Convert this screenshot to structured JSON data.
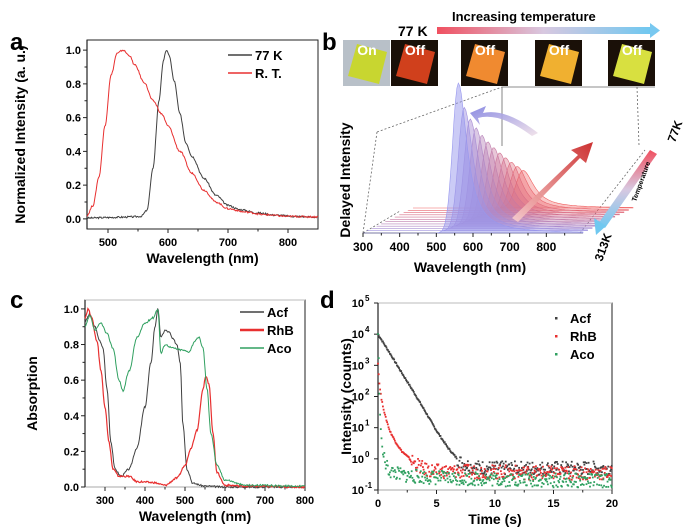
{
  "panels": {
    "a": {
      "label": "a"
    },
    "b": {
      "label": "b",
      "top_label_77k": "77 K",
      "arrow_label": "Increasing temperature",
      "photos": [
        {
          "text": "On",
          "color": "#c8d630"
        },
        {
          "text": "Off",
          "color": "#d0401c"
        },
        {
          "text": "Off",
          "color": "#f08a30"
        },
        {
          "text": "Off",
          "color": "#f0b030"
        },
        {
          "text": "Off",
          "color": "#d8e040"
        }
      ],
      "temp_high": "77K",
      "temp_low": "313K",
      "temp_axis_label": "Temperature"
    },
    "c": {
      "label": "c"
    },
    "d": {
      "label": "d"
    }
  },
  "chart_data": [
    {
      "id": "a",
      "type": "line",
      "title": "",
      "xlabel": "Wavelength (nm)",
      "ylabel": "Normalized Intensity (a. u.)",
      "xlim": [
        465,
        850
      ],
      "ylim": [
        -0.06,
        1.06
      ],
      "xticks": [
        500,
        600,
        700,
        800
      ],
      "yticks": [
        0.0,
        0.2,
        0.4,
        0.6,
        0.8,
        1.0
      ],
      "ytick_labels": [
        "0.0",
        "0.2",
        "0.4",
        "0.6",
        "0.8",
        "1.0"
      ],
      "legend_position": "top-right",
      "series": [
        {
          "name": "77 K",
          "color": "#404040",
          "x": [
            465,
            500,
            520,
            540,
            555,
            565,
            575,
            585,
            592,
            597,
            602,
            610,
            620,
            630,
            640,
            660,
            680,
            700,
            720,
            750,
            780,
            810,
            850
          ],
          "y": [
            0.005,
            0.008,
            0.01,
            0.012,
            0.015,
            0.05,
            0.3,
            0.7,
            0.93,
            1.0,
            0.97,
            0.82,
            0.62,
            0.45,
            0.37,
            0.24,
            0.14,
            0.08,
            0.055,
            0.035,
            0.022,
            0.015,
            0.01
          ]
        },
        {
          "name": "R. T.",
          "color": "#e83030",
          "x": [
            465,
            475,
            485,
            495,
            505,
            515,
            525,
            535,
            545,
            560,
            575,
            590,
            600,
            620,
            640,
            660,
            680,
            700,
            730,
            760,
            800,
            850
          ],
          "y": [
            0.02,
            0.08,
            0.25,
            0.55,
            0.85,
            0.98,
            1.0,
            0.97,
            0.91,
            0.81,
            0.7,
            0.62,
            0.55,
            0.4,
            0.27,
            0.17,
            0.1,
            0.06,
            0.04,
            0.025,
            0.015,
            0.012
          ]
        }
      ]
    },
    {
      "id": "b",
      "type": "area",
      "title": "",
      "xlabel": "Wavelength (nm)",
      "ylabel": "Delayed Intensity",
      "xlim": [
        300,
        900
      ],
      "xticks": [
        300,
        400,
        500,
        600,
        700,
        800
      ],
      "z_label": "Temperature",
      "z_range": [
        "313K",
        "77K"
      ],
      "note": "3D waterfall of delayed emission spectra; high-temperature (313K, blue) peak near 560 nm is intense, low-temperature (77K, red) peak near 600 nm is weak",
      "series": [
        {
          "name": "313K",
          "color": "#8888ee",
          "peak_nm": 560,
          "relative_height": 1.0
        },
        {
          "name": "77K",
          "color": "#f06060",
          "peak_nm": 600,
          "relative_height": 0.25
        }
      ]
    },
    {
      "id": "c",
      "type": "line",
      "title": "",
      "xlabel": "Wavelength (nm)",
      "ylabel": "Absorption",
      "xlim": [
        250,
        800
      ],
      "ylim": [
        0,
        1.05
      ],
      "xticks": [
        300,
        400,
        500,
        600,
        700,
        800
      ],
      "yticks": [
        0.0,
        0.2,
        0.4,
        0.6,
        0.8,
        1.0
      ],
      "ytick_labels": [
        "0.0",
        "0.2",
        "0.4",
        "0.6",
        "0.8",
        "1.0"
      ],
      "legend_position": "top-right",
      "series": [
        {
          "name": "Acf",
          "color": "#404040",
          "x": [
            250,
            262,
            275,
            285,
            295,
            305,
            315,
            325,
            340,
            360,
            380,
            400,
            415,
            425,
            432,
            440,
            450,
            460,
            470,
            480,
            488,
            495,
            505,
            520,
            550,
            600,
            800
          ],
          "y": [
            0.93,
            0.97,
            0.9,
            0.83,
            0.78,
            0.55,
            0.25,
            0.1,
            0.06,
            0.1,
            0.22,
            0.45,
            0.7,
            0.9,
            1.0,
            0.84,
            0.88,
            0.87,
            0.83,
            0.8,
            0.7,
            0.35,
            0.1,
            0.02,
            0.005,
            0.0,
            0.0
          ]
        },
        {
          "name": "RhB",
          "color": "#e83030",
          "x": [
            250,
            258,
            265,
            280,
            290,
            300,
            310,
            320,
            335,
            350,
            360,
            380,
            420,
            450,
            480,
            500,
            515,
            530,
            545,
            552,
            560,
            570,
            580,
            600,
            650,
            800
          ],
          "y": [
            0.95,
            1.0,
            0.96,
            0.82,
            0.65,
            0.45,
            0.25,
            0.1,
            0.06,
            0.06,
            0.06,
            0.03,
            0.025,
            0.01,
            0.05,
            0.12,
            0.22,
            0.32,
            0.55,
            0.62,
            0.58,
            0.3,
            0.08,
            0.01,
            0.005,
            0.0
          ]
        },
        {
          "name": "Aco",
          "color": "#30a060",
          "x": [
            250,
            262,
            275,
            290,
            305,
            320,
            335,
            345,
            360,
            380,
            400,
            420,
            432,
            440,
            450,
            470,
            490,
            510,
            525,
            535,
            545,
            555,
            565,
            580,
            600,
            650,
            800
          ],
          "y": [
            0.9,
            0.96,
            0.88,
            0.92,
            0.86,
            0.78,
            0.6,
            0.54,
            0.65,
            0.84,
            0.92,
            0.95,
            1.0,
            0.75,
            0.8,
            0.78,
            0.77,
            0.76,
            0.82,
            0.84,
            0.78,
            0.55,
            0.3,
            0.12,
            0.04,
            0.01,
            0.005
          ]
        }
      ]
    },
    {
      "id": "d",
      "type": "scatter",
      "title": "",
      "xlabel": "Time (s)",
      "ylabel": "Intensity (counts)",
      "xlim": [
        0,
        20
      ],
      "ylim": [
        0.1,
        100000
      ],
      "yscale": "log",
      "xticks": [
        0,
        5,
        10,
        15,
        20
      ],
      "yticks": [
        0.1,
        1,
        10,
        100,
        1000,
        10000,
        100000
      ],
      "ytick_labels": [
        [
          "10",
          "-1"
        ],
        [
          "10",
          "0"
        ],
        [
          "10",
          "1"
        ],
        [
          "10",
          "2"
        ],
        [
          "10",
          "3"
        ],
        [
          "10",
          "4"
        ],
        [
          "10",
          "5"
        ]
      ],
      "legend_position": "top-right",
      "series": [
        {
          "name": "Acf",
          "color": "#404040",
          "x": [
            0,
            1,
            2,
            3,
            4,
            5,
            6,
            7,
            8,
            10,
            15,
            20
          ],
          "y": [
            10000,
            2500,
            600,
            150,
            35,
            8,
            2.2,
            0.8,
            0.55,
            0.5,
            0.5,
            0.5
          ]
        },
        {
          "name": "RhB",
          "color": "#e83030",
          "x": [
            0,
            0.1,
            0.3,
            0.6,
            1,
            1.5,
            2,
            3,
            4,
            5,
            10,
            15,
            20
          ],
          "y": [
            1200,
            300,
            80,
            25,
            8,
            3.5,
            1.8,
            0.8,
            0.45,
            0.4,
            0.38,
            0.35,
            0.35
          ]
        },
        {
          "name": "Aco",
          "color": "#30a060",
          "x": [
            0,
            0.05,
            0.1,
            0.2,
            0.4,
            0.7,
            1,
            2,
            3,
            5,
            10,
            15,
            20
          ],
          "y": [
            10000,
            3000,
            200,
            15,
            1.5,
            0.6,
            0.4,
            0.3,
            0.28,
            0.25,
            0.22,
            0.2,
            0.2
          ]
        }
      ]
    }
  ]
}
